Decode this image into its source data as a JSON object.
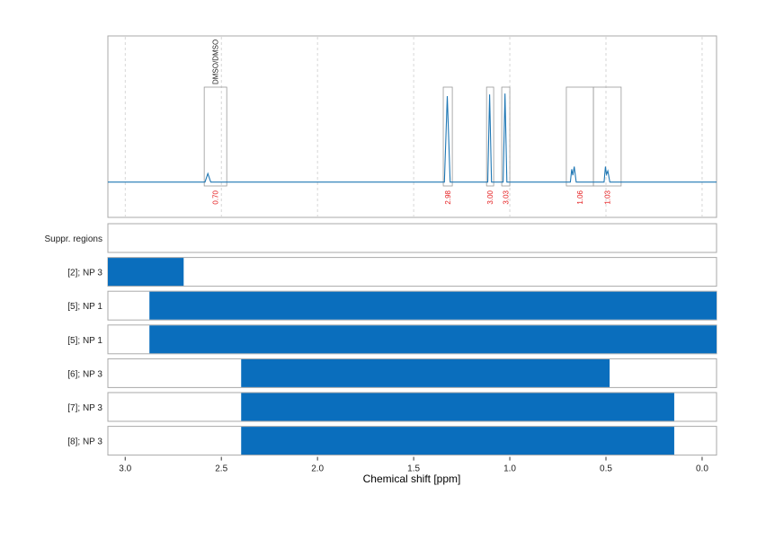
{
  "chart_data": {
    "type": "nmr",
    "x_label": "Chemical shift [ppm]",
    "xlim": [
      3.09,
      -0.075
    ],
    "xticks": [
      {
        "value": 3,
        "label": "3.0"
      },
      2.5,
      {
        "value": 2,
        "label": "2.0"
      },
      1.5,
      {
        "value": 1,
        "label": "1.0"
      },
      0.5,
      {
        "value": 0,
        "label": "0.0"
      }
    ],
    "grid": true,
    "spectrum": {
      "color": "#1f77b4",
      "ylim": [
        -0.41,
        1.7
      ],
      "x": [
        3.09,
        2.585,
        2.57,
        2.555,
        1.34,
        1.325,
        1.31,
        1.115,
        1.105,
        1.095,
        1.035,
        1.025,
        1.015,
        0.685,
        0.678,
        0.672,
        0.665,
        0.655,
        0.51,
        0.503,
        0.497,
        0.49,
        0.48,
        -0.075
      ],
      "y": [
        0,
        0,
        0.1,
        0,
        0,
        1.0,
        0,
        0,
        1.02,
        0,
        0,
        1.03,
        0,
        0,
        0.15,
        0.08,
        0.18,
        0,
        0,
        0.18,
        0.09,
        0.13,
        0,
        0
      ]
    },
    "integrals": {
      "color": "#e41a1c",
      "start": [
        2.589,
        1.346,
        1.121,
        1.042,
        0.706,
        0.565
      ],
      "end": [
        2.472,
        1.299,
        1.084,
        1.0,
        0.565,
        0.421
      ],
      "values": [
        0.7,
        2.98,
        3.0,
        3.03,
        1.06,
        1.03
      ],
      "value_labels": [
        "0.70",
        "2.98",
        "3.00",
        "3.03",
        "1.06",
        "1.03"
      ],
      "annotation": "DMSO/DMSO"
    },
    "regions": {
      "color": "#0a6ebd",
      "labels": [
        "Suppr. regions",
        "[2]; NP 3",
        "[5]; NP 1",
        "[5]; NP 1",
        "[6]; NP 3",
        "[7]; NP 3",
        "[8]; NP 3"
      ],
      "start": [
        null,
        3.09,
        2.874,
        2.874,
        2.397,
        2.397,
        2.397
      ],
      "end": [
        null,
        2.696,
        -0.075,
        -0.075,
        0.481,
        0.145,
        0.145
      ]
    }
  }
}
